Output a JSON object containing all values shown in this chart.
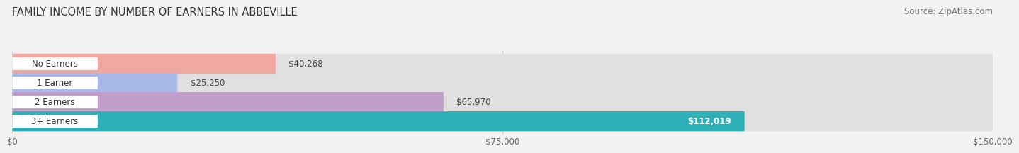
{
  "title": "FAMILY INCOME BY NUMBER OF EARNERS IN ABBEVILLE",
  "source": "Source: ZipAtlas.com",
  "categories": [
    "No Earners",
    "1 Earner",
    "2 Earners",
    "3+ Earners"
  ],
  "values": [
    40268,
    25250,
    65970,
    112019
  ],
  "bar_colors": [
    "#f0a8a2",
    "#a8b8e8",
    "#c0a0c8",
    "#2eb0b8"
  ],
  "value_labels": [
    "$40,268",
    "$25,250",
    "$65,970",
    "$112,019"
  ],
  "value_inside": [
    false,
    false,
    false,
    true
  ],
  "xlim": [
    0,
    150000
  ],
  "xticks": [
    0,
    75000,
    150000
  ],
  "xtick_labels": [
    "$0",
    "$75,000",
    "$150,000"
  ],
  "bar_height": 0.55,
  "background_color": "#f2f2f2",
  "bar_bg_color": "#e0e0e0",
  "title_fontsize": 10.5,
  "source_fontsize": 8.5,
  "label_fontsize": 8.5,
  "value_fontsize": 8.5,
  "tick_fontsize": 8.5
}
